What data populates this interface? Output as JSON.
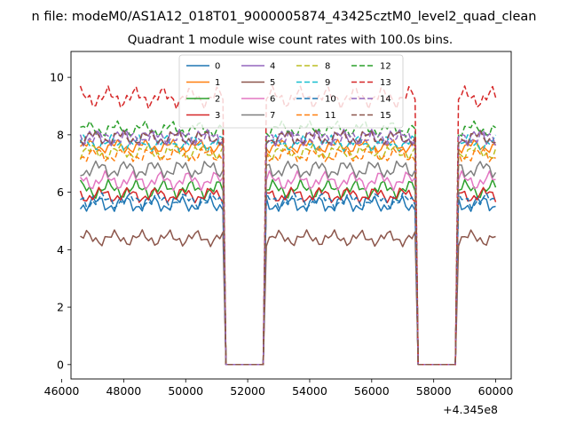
{
  "figure": {
    "suptitle": "n file: modeM0/AS1A12_018T01_9000005874_43425cztM0_level2_quad_clean",
    "title": "Quadrant 1 module wise count rates with 100.0s bins.",
    "x_offset_label": "+4.345e8"
  },
  "chart_data": {
    "type": "line",
    "x_offset": 434500000,
    "xlim": [
      46300,
      60500
    ],
    "ylim": [
      -0.5,
      10.9
    ],
    "xticks": [
      46000,
      48000,
      50000,
      52000,
      54000,
      56000,
      58000,
      60000
    ],
    "xtick_labels": [
      "46000",
      "48000",
      "50000",
      "52000",
      "54000",
      "56000",
      "58000",
      "60000"
    ],
    "yticks": [
      0,
      2,
      4,
      6,
      8,
      10
    ],
    "ytick_labels": [
      "0",
      "2",
      "4",
      "6",
      "8",
      "10"
    ],
    "grid": false,
    "legend": {
      "placement": "upper-center",
      "ncol": 4
    },
    "bin_width_s": 100,
    "segments": [
      {
        "start": 46600,
        "end": 51200
      },
      {
        "start": 52600,
        "end": 57400
      },
      {
        "start": 58800,
        "end": 60000
      }
    ],
    "series": [
      {
        "name": "0",
        "color": "#1f77b4",
        "dash": "solid",
        "level": 5.6,
        "amplitude": 0.35
      },
      {
        "name": "1",
        "color": "#ff7f0e",
        "dash": "solid",
        "level": 7.6,
        "amplitude": 0.25
      },
      {
        "name": "2",
        "color": "#2ca02c",
        "dash": "solid",
        "level": 6.1,
        "amplitude": 0.35
      },
      {
        "name": "3",
        "color": "#d62728",
        "dash": "solid",
        "level": 5.9,
        "amplitude": 0.3
      },
      {
        "name": "4",
        "color": "#9467bd",
        "dash": "solid",
        "level": 7.9,
        "amplitude": 0.35
      },
      {
        "name": "5",
        "color": "#8c564b",
        "dash": "solid",
        "level": 4.4,
        "amplitude": 0.3
      },
      {
        "name": "6",
        "color": "#e377c2",
        "dash": "solid",
        "level": 6.4,
        "amplitude": 0.35
      },
      {
        "name": "7",
        "color": "#7f7f7f",
        "dash": "solid",
        "level": 6.8,
        "amplitude": 0.35
      },
      {
        "name": "8",
        "color": "#bcbd22",
        "dash": "dashed",
        "level": 7.4,
        "amplitude": 0.3
      },
      {
        "name": "9",
        "color": "#17becf",
        "dash": "dashed",
        "level": 7.7,
        "amplitude": 0.3
      },
      {
        "name": "10",
        "color": "#1f77b4",
        "dash": "dashed",
        "level": 5.7,
        "amplitude": 0.3
      },
      {
        "name": "11",
        "color": "#ff7f0e",
        "dash": "dashed",
        "level": 7.3,
        "amplitude": 0.3
      },
      {
        "name": "12",
        "color": "#2ca02c",
        "dash": "dashed",
        "level": 8.2,
        "amplitude": 0.3
      },
      {
        "name": "13",
        "color": "#d62728",
        "dash": "dashed",
        "level": 9.3,
        "amplitude": 0.4
      },
      {
        "name": "14",
        "color": "#9467bd",
        "dash": "dashed",
        "level": 7.9,
        "amplitude": 0.3
      },
      {
        "name": "15",
        "color": "#8c564b",
        "dash": "dashed",
        "level": 7.9,
        "amplitude": 0.3
      }
    ]
  }
}
